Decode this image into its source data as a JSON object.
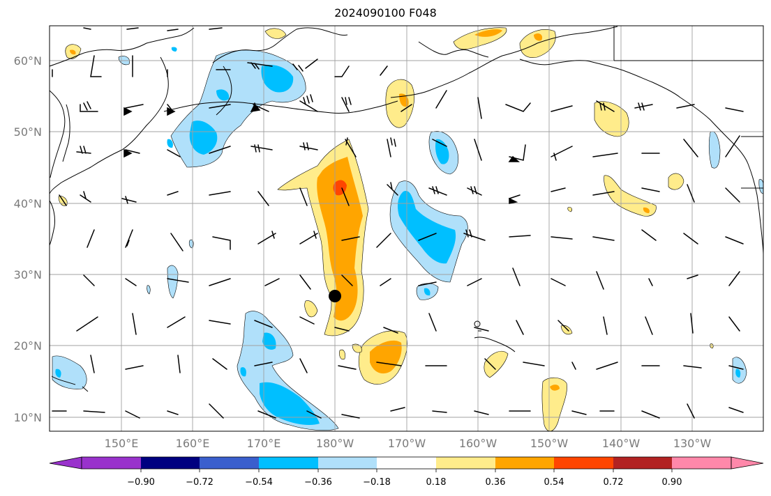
{
  "title": "2024090100 F048",
  "map": {
    "lat_labels": [
      "60°N",
      "50°N",
      "40°N",
      "30°N",
      "20°N",
      "10°N"
    ],
    "lon_labels": [
      "150°E",
      "160°E",
      "170°E",
      "180°W",
      "170°W",
      "160°W",
      "150°W",
      "140°W",
      "130°W"
    ],
    "colors": {
      "coast": "#000000",
      "grid": "#a0a0a0",
      "marker": "#000000"
    }
  },
  "colorbar": {
    "ticks": [
      "−0.90",
      "−0.72",
      "−0.54",
      "−0.36",
      "−0.18",
      "0.18",
      "0.36",
      "0.54",
      "0.72",
      "0.90"
    ],
    "colors": [
      "#9932cc",
      "#000080",
      "#3a5fcd",
      "#00bfff",
      "#b0e0fa",
      "#ffffff",
      "#ffec8b",
      "#ffa500",
      "#ff4500",
      "#b22222",
      "#ff88aa"
    ]
  }
}
